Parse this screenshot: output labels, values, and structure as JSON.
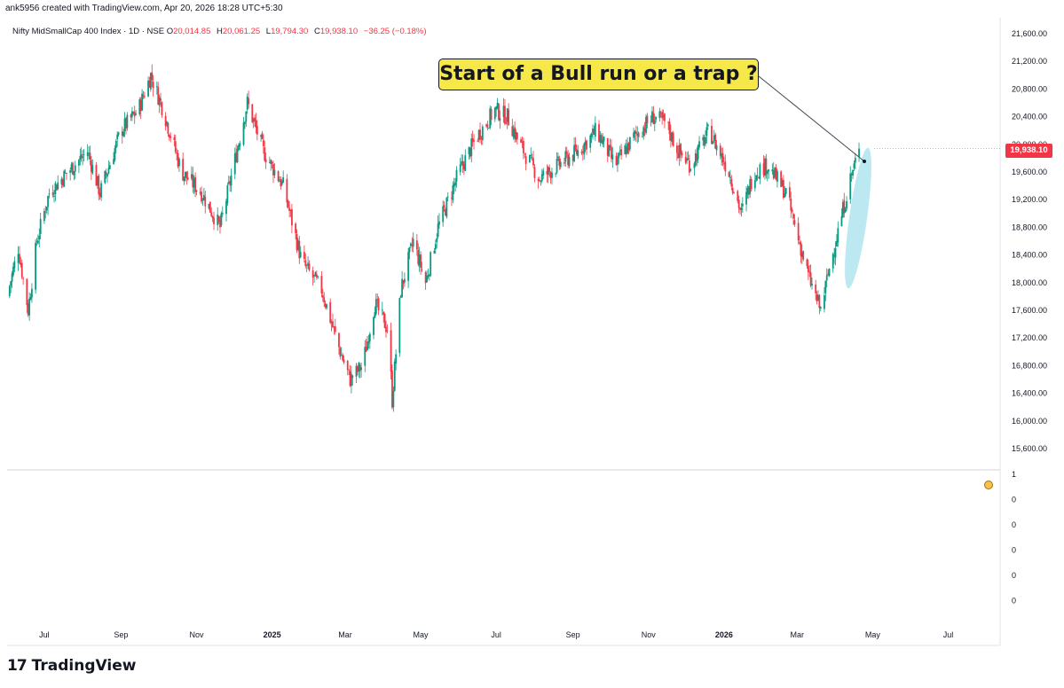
{
  "header": {
    "creator": "ank5956 created with TradingView.com, Apr 20, 2026 18:28 UTC+5:30"
  },
  "legend": {
    "symbol": "Nifty MidSmallCap 400 Index · 1D · NSE",
    "open_label": "O",
    "open": "20,014.85",
    "high_label": "H",
    "high": "20,061.25",
    "low_label": "L",
    "low": "19,794.30",
    "close_label": "C",
    "close": "19,938.10",
    "change": "−36.25 (−0.18%)"
  },
  "annotation": {
    "text": "Start of a Bull run or a trap ?"
  },
  "last_price_badge": "19,938.10",
  "footer": {
    "logo_mark": "17",
    "brand": "TradingView"
  },
  "colors": {
    "up": "#089981",
    "down": "#f23645",
    "callout_bg": "#f7e84a",
    "highlight": "#8fd8ea"
  },
  "icons": {
    "sub_pane_marker": "emoji-face-icon"
  },
  "chart_data": {
    "type": "candlestick",
    "y_axis_ticks": [
      "21,600.00",
      "21,200.00",
      "20,800.00",
      "20,400.00",
      "20,000.00",
      "19,600.00",
      "19,200.00",
      "18,800.00",
      "18,400.00",
      "18,000.00",
      "17,600.00",
      "17,200.00",
      "16,800.00",
      "16,400.00",
      "16,000.00",
      "15,600.00"
    ],
    "ylim": [
      15400,
      21900
    ],
    "x_axis_ticks": [
      {
        "label": "Jul",
        "bold": false
      },
      {
        "label": "Sep",
        "bold": false
      },
      {
        "label": "Nov",
        "bold": false
      },
      {
        "label": "2025",
        "bold": true
      },
      {
        "label": "Mar",
        "bold": false
      },
      {
        "label": "May",
        "bold": false
      },
      {
        "label": "Jul",
        "bold": false
      },
      {
        "label": "Sep",
        "bold": false
      },
      {
        "label": "Nov",
        "bold": false
      },
      {
        "label": "2026",
        "bold": true
      },
      {
        "label": "Mar",
        "bold": false
      },
      {
        "label": "May",
        "bold": false
      },
      {
        "label": "Jul",
        "bold": false
      }
    ],
    "sub_pane_ticks": [
      "1",
      "0",
      "0",
      "0",
      "0",
      "0"
    ],
    "price_path": [
      [
        "2024-06-01",
        17800
      ],
      [
        "2024-06-10",
        18500
      ],
      [
        "2024-06-18",
        17600
      ],
      [
        "2024-06-25",
        18600
      ],
      [
        "2024-07-05",
        19300
      ],
      [
        "2024-07-20",
        19600
      ],
      [
        "2024-08-05",
        19900
      ],
      [
        "2024-08-15",
        19300
      ],
      [
        "2024-09-01",
        20200
      ],
      [
        "2024-09-15",
        20500
      ],
      [
        "2024-09-25",
        21000
      ],
      [
        "2024-10-05",
        20500
      ],
      [
        "2024-10-20",
        19600
      ],
      [
        "2024-11-05",
        19300
      ],
      [
        "2024-11-20",
        18800
      ],
      [
        "2024-12-01",
        19700
      ],
      [
        "2024-12-12",
        20600
      ],
      [
        "2024-12-25",
        19900
      ],
      [
        "2025-01-10",
        19400
      ],
      [
        "2025-01-25",
        18300
      ],
      [
        "2025-02-10",
        17900
      ],
      [
        "2025-02-25",
        17000
      ],
      [
        "2025-03-05",
        16600
      ],
      [
        "2025-03-15",
        16800
      ],
      [
        "2025-03-25",
        17700
      ],
      [
        "2025-04-05",
        17300
      ],
      [
        "2025-04-08",
        16300
      ],
      [
        "2025-04-15",
        17900
      ],
      [
        "2025-04-25",
        18600
      ],
      [
        "2025-05-05",
        18000
      ],
      [
        "2025-05-15",
        18800
      ],
      [
        "2025-06-01",
        19600
      ],
      [
        "2025-06-15",
        20100
      ],
      [
        "2025-06-30",
        20500
      ],
      [
        "2025-07-10",
        20400
      ],
      [
        "2025-07-20",
        20000
      ],
      [
        "2025-08-05",
        19500
      ],
      [
        "2025-08-20",
        19700
      ],
      [
        "2025-09-05",
        19900
      ],
      [
        "2025-09-20",
        20200
      ],
      [
        "2025-10-05",
        19700
      ],
      [
        "2025-10-20",
        20100
      ],
      [
        "2025-11-05",
        20400
      ],
      [
        "2025-11-15",
        20300
      ],
      [
        "2025-11-25",
        19900
      ],
      [
        "2025-12-05",
        19700
      ],
      [
        "2025-12-20",
        20200
      ],
      [
        "2026-01-05",
        19600
      ],
      [
        "2026-01-15",
        19000
      ],
      [
        "2026-01-25",
        19600
      ],
      [
        "2026-02-05",
        19700
      ],
      [
        "2026-02-20",
        19300
      ],
      [
        "2026-03-01",
        18700
      ],
      [
        "2026-03-10",
        18100
      ],
      [
        "2026-03-20",
        17600
      ],
      [
        "2026-03-27",
        18200
      ],
      [
        "2026-04-05",
        18900
      ],
      [
        "2026-04-13",
        19500
      ],
      [
        "2026-04-20",
        19938.1
      ]
    ],
    "last_close": 19938.1
  }
}
